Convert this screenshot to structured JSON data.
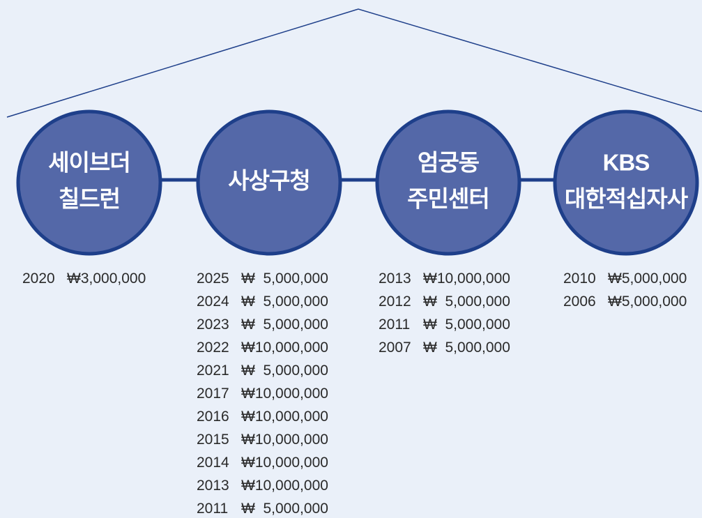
{
  "nodes": [
    {
      "label": [
        "세이브더",
        "칠드런"
      ],
      "entries": [
        {
          "year": "2020",
          "amount": "₩3,000,000"
        }
      ]
    },
    {
      "label": [
        "사상구청"
      ],
      "entries": [
        {
          "year": "2025",
          "amount": "₩  5,000,000"
        },
        {
          "year": "2024",
          "amount": "₩  5,000,000"
        },
        {
          "year": "2023",
          "amount": "₩  5,000,000"
        },
        {
          "year": "2022",
          "amount": "₩10,000,000"
        },
        {
          "year": "2021",
          "amount": "₩  5,000,000"
        },
        {
          "year": "2017",
          "amount": "₩10,000,000"
        },
        {
          "year": "2016",
          "amount": "₩10,000,000"
        },
        {
          "year": "2015",
          "amount": "₩10,000,000"
        },
        {
          "year": "2014",
          "amount": "₩10,000,000"
        },
        {
          "year": "2013",
          "amount": "₩10,000,000"
        },
        {
          "year": "2011",
          "amount": "₩  5,000,000"
        }
      ]
    },
    {
      "label": [
        "엄궁동",
        "주민센터"
      ],
      "entries": [
        {
          "year": "2013",
          "amount": "₩10,000,000"
        },
        {
          "year": "2012",
          "amount": "₩  5,000,000"
        },
        {
          "year": "2011",
          "amount": "₩  5,000,000"
        },
        {
          "year": "2007",
          "amount": "₩  5,000,000"
        }
      ]
    },
    {
      "label": [
        "KBS",
        "대한적십자사"
      ],
      "entries": [
        {
          "year": "2010",
          "amount": "₩5,000,000"
        },
        {
          "year": "2006",
          "amount": "₩5,000,000"
        }
      ]
    }
  ]
}
